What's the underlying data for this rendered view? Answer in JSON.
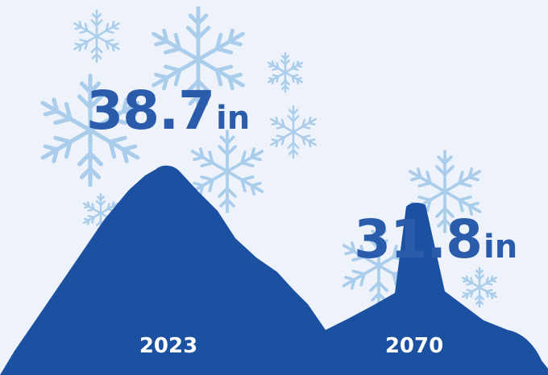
{
  "chart_data": {
    "type": "area",
    "categories": [
      "2023",
      "2070"
    ],
    "values": [
      38.7,
      31.8
    ],
    "value_labels": [
      "38.7",
      "31.8"
    ],
    "unit": "in"
  },
  "colors": {
    "background": "#eef3fb",
    "mountain": "#1c50a0",
    "value_text": "#2a5cab",
    "year_text": "#ffffff",
    "snowflake": "#a9cdea"
  },
  "decoration": {
    "snowflake_icon": "snowflake-icon"
  }
}
